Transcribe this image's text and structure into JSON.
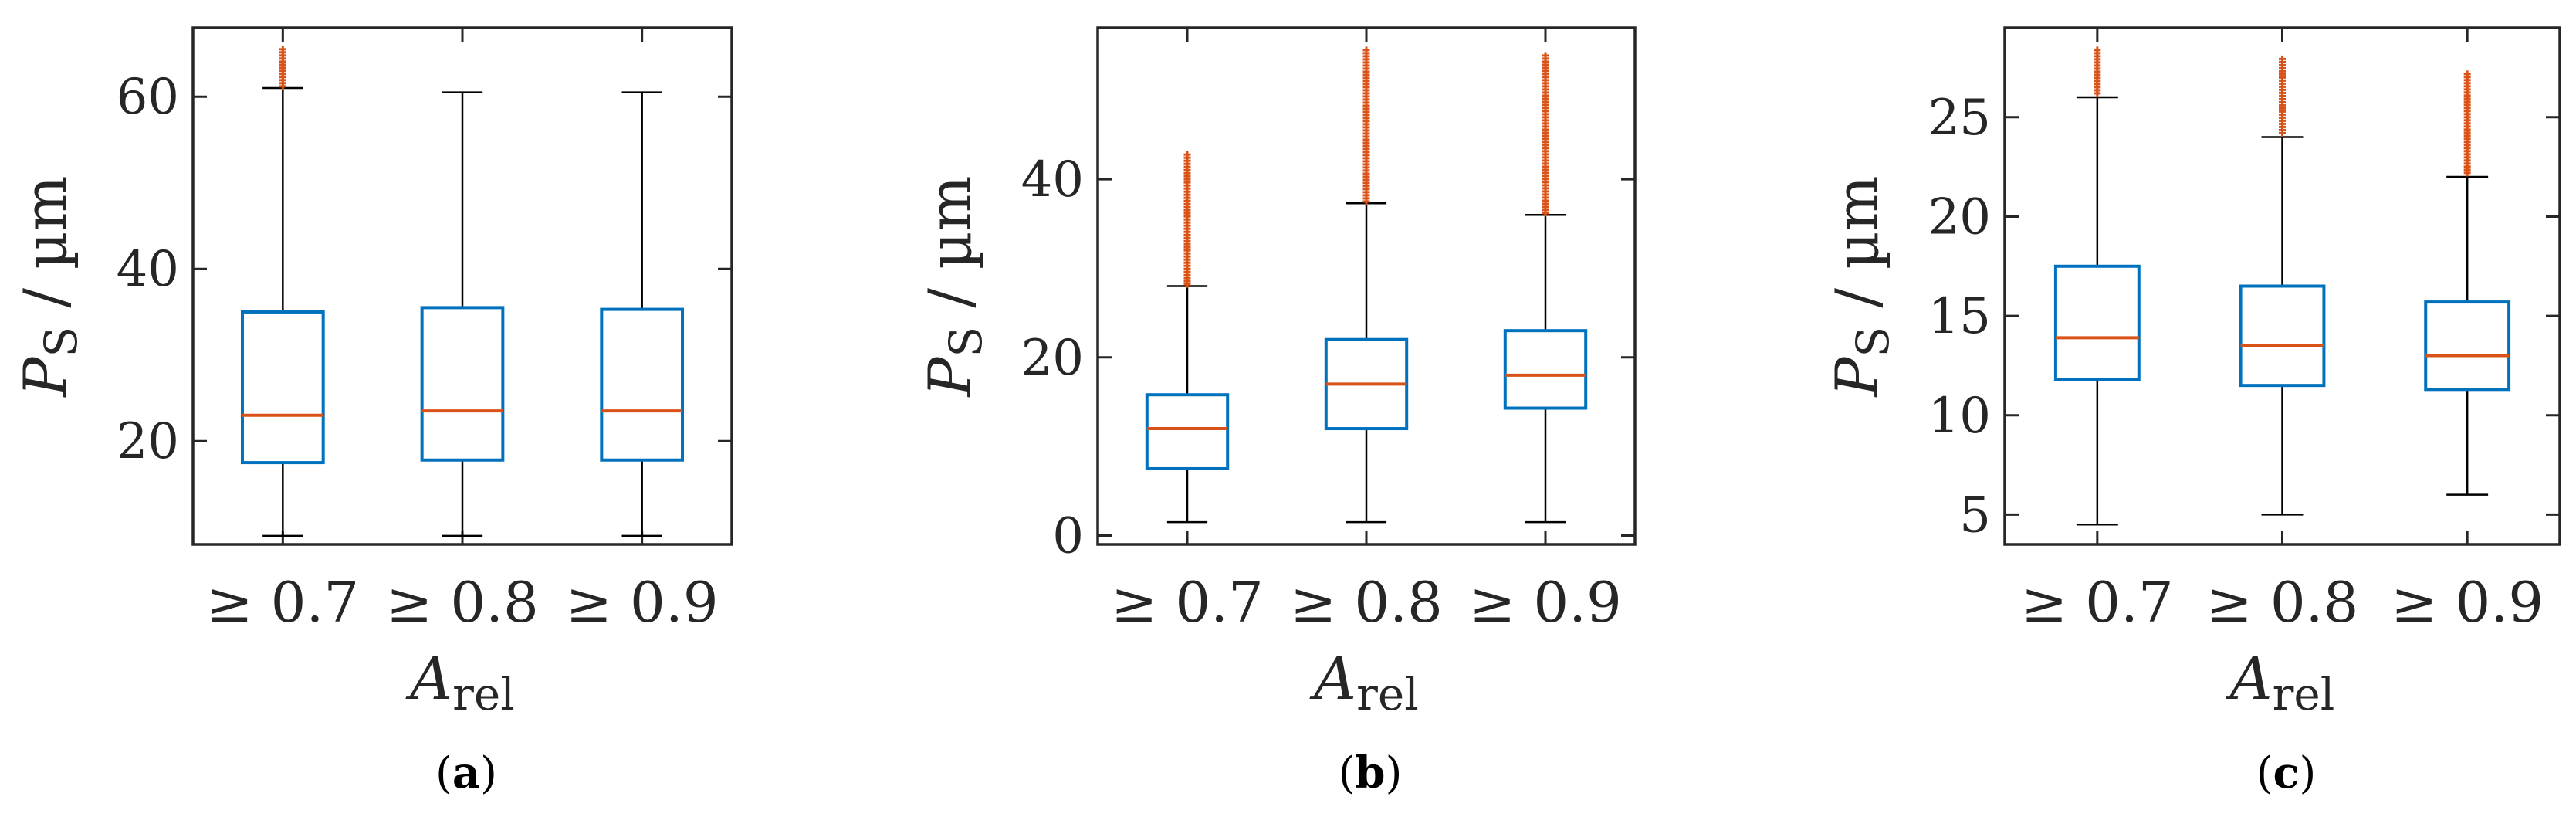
{
  "chart_data": [
    {
      "type": "box",
      "caption_letter": "a",
      "ylabel": "P",
      "ylabel_sub": "S",
      "ylabel_unit": " / µm",
      "xlabel": "A",
      "xlabel_sub": "rel",
      "categories": [
        "≥ 0.7",
        "≥ 0.8",
        "≥ 0.9"
      ],
      "ylim": [
        8,
        68
      ],
      "yticks": [
        20,
        40,
        60
      ],
      "ytick_labels": [
        "20",
        "40",
        "60"
      ],
      "boxes": [
        {
          "whisker_low": 9.0,
          "q1": 17.5,
          "median": 23.0,
          "q3": 35.0,
          "whisker_high": 61.0,
          "outlier_low": 61.2,
          "outlier_high": 65.5
        },
        {
          "whisker_low": 9.0,
          "q1": 17.8,
          "median": 23.5,
          "q3": 35.5,
          "whisker_high": 60.5,
          "outlier_low": null,
          "outlier_high": null
        },
        {
          "whisker_low": 9.0,
          "q1": 17.8,
          "median": 23.5,
          "q3": 35.3,
          "whisker_high": 60.5,
          "outlier_low": null,
          "outlier_high": null
        }
      ]
    },
    {
      "type": "box",
      "caption_letter": "b",
      "ylabel": "P",
      "ylabel_sub": "S",
      "ylabel_unit": " / µm",
      "xlabel": "A",
      "xlabel_sub": "rel",
      "categories": [
        "≥ 0.7",
        "≥ 0.8",
        "≥ 0.9"
      ],
      "ylim": [
        -1,
        57
      ],
      "yticks": [
        0,
        20,
        40
      ],
      "ytick_labels": [
        "0",
        "20",
        "40"
      ],
      "boxes": [
        {
          "whisker_low": 1.5,
          "q1": 7.5,
          "median": 12.0,
          "q3": 15.8,
          "whisker_high": 28.0,
          "outlier_low": 28.2,
          "outlier_high": 43.0
        },
        {
          "whisker_low": 1.5,
          "q1": 12.0,
          "median": 17.0,
          "q3": 22.0,
          "whisker_high": 37.3,
          "outlier_low": 37.5,
          "outlier_high": 54.5
        },
        {
          "whisker_low": 1.5,
          "q1": 14.3,
          "median": 18.0,
          "q3": 23.0,
          "whisker_high": 36.0,
          "outlier_low": 36.2,
          "outlier_high": 54.0
        }
      ]
    },
    {
      "type": "box",
      "caption_letter": "c",
      "ylabel": "P",
      "ylabel_sub": "S",
      "ylabel_unit": " / µm",
      "xlabel": "A",
      "xlabel_sub": "rel",
      "categories": [
        "≥ 0.7",
        "≥ 0.8",
        "≥ 0.9"
      ],
      "ylim": [
        3.5,
        29.5
      ],
      "yticks": [
        5,
        10,
        15,
        20,
        25
      ],
      "ytick_labels": [
        "5",
        "10",
        "15",
        "20",
        "25"
      ],
      "boxes": [
        {
          "whisker_low": 4.5,
          "q1": 11.8,
          "median": 13.9,
          "q3": 17.5,
          "whisker_high": 26.0,
          "outlier_low": 26.2,
          "outlier_high": 28.5
        },
        {
          "whisker_low": 5.0,
          "q1": 11.5,
          "median": 13.5,
          "q3": 16.5,
          "whisker_high": 24.0,
          "outlier_low": 24.2,
          "outlier_high": 28.0
        },
        {
          "whisker_low": 6.0,
          "q1": 11.3,
          "median": 13.0,
          "q3": 15.7,
          "whisker_high": 22.0,
          "outlier_low": 22.2,
          "outlier_high": 27.2
        }
      ]
    }
  ]
}
